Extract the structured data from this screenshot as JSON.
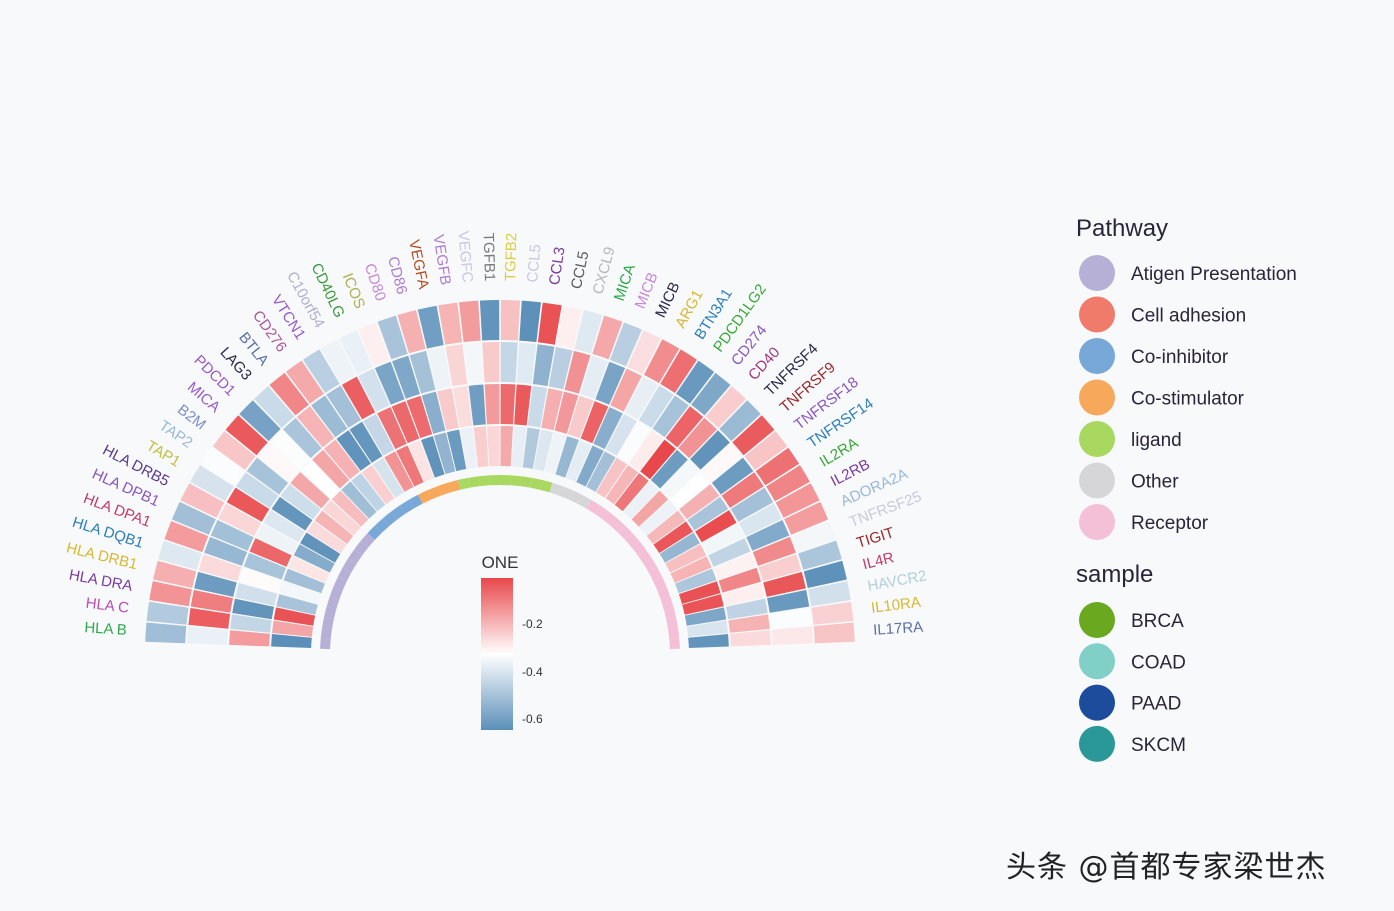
{
  "watermark": "头条 @首都专家梁世杰",
  "chart_data": {
    "type": "heatmap",
    "layout": "circular",
    "genes": [
      {
        "name": "HLA B",
        "pathway": "Atigen Presentation",
        "color": "#2ea84a"
      },
      {
        "name": "HLA C",
        "pathway": "Atigen Presentation",
        "color": "#b84db8"
      },
      {
        "name": "HLA DRA",
        "pathway": "Atigen Presentation",
        "color": "#7a3aa0"
      },
      {
        "name": "HLA DRB1",
        "pathway": "Atigen Presentation",
        "color": "#d8b830"
      },
      {
        "name": "HLA DQB1",
        "pathway": "Atigen Presentation",
        "color": "#2c7fb8"
      },
      {
        "name": "HLA DPA1",
        "pathway": "Atigen Presentation",
        "color": "#c23b6e"
      },
      {
        "name": "HLA DPB1",
        "pathway": "Atigen Presentation",
        "color": "#8a56c2"
      },
      {
        "name": "HLA DRB5",
        "pathway": "Atigen Presentation",
        "color": "#5b3a8c"
      },
      {
        "name": "TAP1",
        "pathway": "Atigen Presentation",
        "color": "#c0c040"
      },
      {
        "name": "TAP2",
        "pathway": "Atigen Presentation",
        "color": "#9ab8d8"
      },
      {
        "name": "B2M",
        "pathway": "Atigen Presentation",
        "color": "#7a8ec8"
      },
      {
        "name": "MICA",
        "pathway": "Atigen Presentation",
        "color": "#9a5ac8"
      },
      {
        "name": "PDCD1",
        "pathway": "Co-inhibitor",
        "color": "#9a5ac8"
      },
      {
        "name": "LAG3",
        "pathway": "Co-inhibitor",
        "color": "#2a2a4a"
      },
      {
        "name": "BTLA",
        "pathway": "Co-inhibitor",
        "color": "#5b6fa8"
      },
      {
        "name": "CD276",
        "pathway": "Co-inhibitor",
        "color": "#a8589c"
      },
      {
        "name": "VTCN1",
        "pathway": "Co-inhibitor",
        "color": "#9a5ac8"
      },
      {
        "name": "C10orf54",
        "pathway": "Co-inhibitor",
        "color": "#b0b0d0"
      },
      {
        "name": "CD40LG",
        "pathway": "Co-stimulator",
        "color": "#3a9a3a"
      },
      {
        "name": "ICOS",
        "pathway": "Co-stimulator",
        "color": "#b0b050"
      },
      {
        "name": "CD80",
        "pathway": "Co-stimulator",
        "color": "#c888d8"
      },
      {
        "name": "CD86",
        "pathway": "Co-stimulator",
        "color": "#b07ad0"
      },
      {
        "name": "VEGFA",
        "pathway": "ligand",
        "color": "#b84a20"
      },
      {
        "name": "VEGFB",
        "pathway": "ligand",
        "color": "#b07ad0"
      },
      {
        "name": "VEGFC",
        "pathway": "ligand",
        "color": "#c8c8e0"
      },
      {
        "name": "TGFB1",
        "pathway": "ligand",
        "color": "#7a7a7a"
      },
      {
        "name": "TGFB2",
        "pathway": "ligand",
        "color": "#d8d040"
      },
      {
        "name": "CCL5",
        "pathway": "ligand",
        "color": "#c8c8e0"
      },
      {
        "name": "CCL3",
        "pathway": "ligand",
        "color": "#7a3aa0"
      },
      {
        "name": "CCL5",
        "pathway": "ligand",
        "color": "#5a5a5a"
      },
      {
        "name": "CXCL9",
        "pathway": "ligand",
        "color": "#b8b8b8"
      },
      {
        "name": "MICA",
        "pathway": "Other",
        "color": "#2ea84a"
      },
      {
        "name": "MICB",
        "pathway": "Other",
        "color": "#c888d8"
      },
      {
        "name": "MICB",
        "pathway": "Other",
        "color": "#2a2a4a"
      },
      {
        "name": "ARG1",
        "pathway": "Other",
        "color": "#d8b830"
      },
      {
        "name": "BTN3A1",
        "pathway": "Receptor",
        "color": "#2c7fb8"
      },
      {
        "name": "PDCD1LG2",
        "pathway": "Receptor",
        "color": "#3aa83a"
      },
      {
        "name": "CD274",
        "pathway": "Receptor",
        "color": "#8a56c2"
      },
      {
        "name": "CD40",
        "pathway": "Receptor",
        "color": "#a03a80"
      },
      {
        "name": "TNFRSF4",
        "pathway": "Receptor",
        "color": "#2a2a4a"
      },
      {
        "name": "TNFRSF9",
        "pathway": "Receptor",
        "color": "#9a2a2a"
      },
      {
        "name": "TNFRSF18",
        "pathway": "Receptor",
        "color": "#8a56c2"
      },
      {
        "name": "TNFRSF14",
        "pathway": "Receptor",
        "color": "#2c7fb8"
      },
      {
        "name": "IL2RA",
        "pathway": "Receptor",
        "color": "#3aa83a"
      },
      {
        "name": "IL2RB",
        "pathway": "Receptor",
        "color": "#7a3aa0"
      },
      {
        "name": "ADORA2A",
        "pathway": "Receptor",
        "color": "#9ab8d8"
      },
      {
        "name": "TNFRSF25",
        "pathway": "Receptor",
        "color": "#c8c8e0"
      },
      {
        "name": "TIGIT",
        "pathway": "Receptor",
        "color": "#9a2a2a"
      },
      {
        "name": "IL4R",
        "pathway": "Receptor",
        "color": "#c23b6e"
      },
      {
        "name": "HAVCR2",
        "pathway": "Receptor",
        "color": "#b0d0d8"
      },
      {
        "name": "IL10RA",
        "pathway": "Receptor",
        "color": "#d8b830"
      },
      {
        "name": "IL17RA",
        "pathway": "Receptor",
        "color": "#5b6fa8"
      }
    ],
    "samples": [
      "BRCA",
      "COAD",
      "PAAD",
      "SKCM"
    ],
    "colorbar": {
      "title": "ONE",
      "ticks": [
        "-0.2",
        "-0.4",
        "-0.6"
      ],
      "low_color": "#5b8fb9",
      "mid_color": "#ffffff",
      "high_color": "#e8474a"
    },
    "legend": {
      "pathway_title": "Pathway",
      "pathway_items": [
        {
          "label": "Atigen Presentation",
          "color": "#b7b0d6"
        },
        {
          "label": "Cell adhesion",
          "color": "#f07b6b"
        },
        {
          "label": "Co-inhibitor",
          "color": "#78a8d8"
        },
        {
          "label": "Co-stimulator",
          "color": "#f8a85a"
        },
        {
          "label": "ligand",
          "color": "#a8d860"
        },
        {
          "label": "Other",
          "color": "#d6d6d8"
        },
        {
          "label": "Receptor",
          "color": "#f4c0d8"
        }
      ],
      "sample_title": "sample",
      "sample_items": [
        {
          "label": "BRCA",
          "color": "#6aa820"
        },
        {
          "label": "COAD",
          "color": "#80d0c8"
        },
        {
          "label": "PAAD",
          "color": "#1e4c9c"
        },
        {
          "label": "SKCM",
          "color": "#2a9898"
        }
      ]
    }
  }
}
